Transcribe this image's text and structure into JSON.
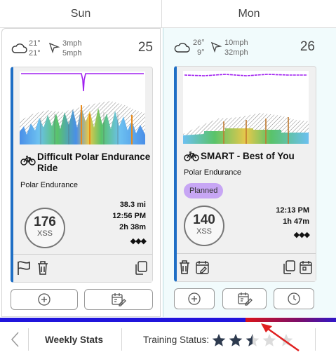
{
  "days": [
    {
      "name": "Sun",
      "date": "25",
      "weather": {
        "icon": "cloud-icon",
        "temp_high": "21°",
        "temp_low": "21°",
        "wind_low": "3mph",
        "wind_high": "5mph"
      },
      "workout": {
        "title_line1": "Difficult Polar Endurance",
        "title_line2": "Ride",
        "subtitle": "Polar Endurance",
        "xss": "176",
        "xss_label": "XSS",
        "distance": "38.3 mi",
        "time": "12:56 PM",
        "duration": "2h 38m",
        "difficulty": "◆◆◆"
      }
    },
    {
      "name": "Mon",
      "date": "26",
      "weather": {
        "icon": "cloud-icon",
        "temp_high": "26°",
        "temp_low": "9°",
        "wind_low": "10mph",
        "wind_high": "32mph"
      },
      "workout": {
        "title": "SMART - Best of You",
        "subtitle": "Polar Endurance",
        "status_badge": "Planned",
        "xss": "140",
        "xss_label": "XSS",
        "time": "12:13 PM",
        "duration": "1h 47m",
        "difficulty": "◆◆◆"
      }
    }
  ],
  "bottom_bar": {
    "weekly_stats_label": "Weekly Stats",
    "training_status_label": "Training Status:",
    "training_status_stars": 2.5,
    "training_status_max": 5
  },
  "colors": {
    "accent_blue": "#1f6fc5",
    "planned_purple": "#c7a6f4",
    "power_line": "#a020f0",
    "scroll_track": "#2015dc",
    "scroll_thumb": "#d8141a",
    "annotation_arrow": "#e02020"
  }
}
